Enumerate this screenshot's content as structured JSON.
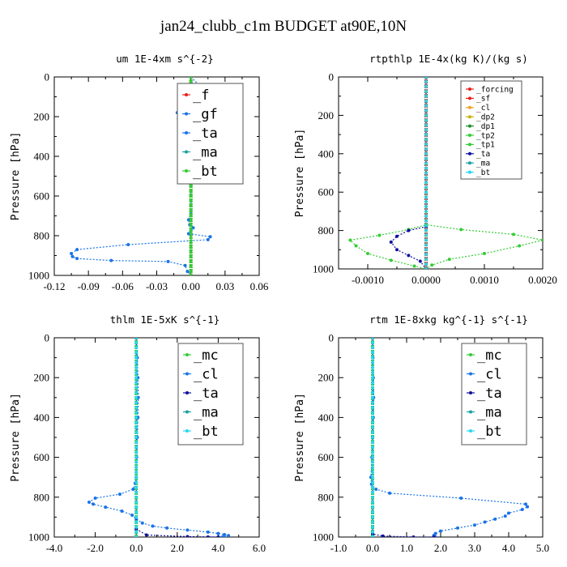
{
  "title": "jan24_clubb_c1m  BUDGET at90E,10N",
  "colors": {
    "frame": "#000000",
    "blue": "#1a73e8",
    "green": "#33cc33",
    "red": "#e8201a",
    "navy": "#1010a0",
    "cyan": "#22d8f0",
    "orange": "#f0a020",
    "gold": "#c8b400",
    "dkgreen": "#1f8f2a",
    "teal": "#18a0a0"
  },
  "chart_data": [
    {
      "type": "line",
      "title": "um  1E-4xm s^{-2}",
      "ylabel": "Pressure [hPa]",
      "xlim": [
        -0.12,
        0.06
      ],
      "ylim": [
        1000,
        0
      ],
      "xticks": [
        "-0.12",
        "-0.09",
        "-0.06",
        "-0.03",
        "0.00",
        "0.03",
        "0.06"
      ],
      "yticks": [
        "0",
        "200",
        "400",
        "600",
        "800",
        "1000"
      ],
      "legend": [
        "_f",
        "_gf",
        "_ta",
        "_ma",
        "_bt"
      ],
      "series": [
        {
          "name": "_f",
          "color": "red",
          "x": [
            0.0,
            0.0
          ],
          "y": [
            0,
            1000
          ]
        },
        {
          "name": "_gf",
          "color": "blue",
          "x": [
            0.0,
            0.018,
            0.017,
            0.029,
            0.03,
            0.029,
            0.021,
            0.01,
            -0.005,
            -0.012,
            -0.011,
            -0.01,
            -0.004,
            -0.001,
            0.0,
            -0.001,
            -0.003,
            -0.001,
            0.0,
            -0.001,
            0.0,
            0.0,
            0.0,
            0.0,
            -0.002,
            -0.001,
            0.002,
            0.0,
            -0.002,
            0.017,
            0.015,
            -0.055,
            -0.1,
            -0.105,
            -0.104,
            -0.1,
            -0.07,
            -0.02,
            -0.005,
            -0.003,
            0.0
          ],
          "y": [
            0,
            105,
            120,
            125,
            135,
            150,
            165,
            170,
            175,
            180,
            210,
            230,
            250,
            270,
            300,
            320,
            360,
            400,
            450,
            500,
            550,
            600,
            650,
            690,
            720,
            745,
            760,
            775,
            790,
            805,
            820,
            845,
            870,
            890,
            905,
            915,
            925,
            930,
            950,
            980,
            1000
          ]
        },
        {
          "name": "_ta",
          "color": "blue",
          "x": [
            0.0,
            0.0
          ],
          "y": [
            0,
            1000
          ]
        },
        {
          "name": "_ma",
          "color": "teal",
          "x": [
            0.0,
            0.0
          ],
          "y": [
            0,
            1000
          ]
        },
        {
          "name": "_bt",
          "color": "green",
          "x": [
            0.0,
            0.0
          ],
          "y": [
            0,
            1000
          ]
        }
      ]
    },
    {
      "type": "line",
      "title": "rtpthlp  1E-4x(kg K)/(kg s)",
      "ylabel": "Pressure [hPa]",
      "xlim": [
        -0.0015,
        0.002
      ],
      "ylim": [
        1000,
        0
      ],
      "xticks": [
        "-0.0010",
        "0.0000",
        "0.0010",
        "0.0020"
      ],
      "yticks": [
        "0",
        "200",
        "400",
        "600",
        "800",
        "1000"
      ],
      "legend": [
        "_forcing",
        "_sf",
        "_cl",
        "_dp2",
        "_dp1",
        "_tp2",
        "_tp1",
        "_ta",
        "_ma",
        "_bt"
      ],
      "series": [
        {
          "name": "_forcing",
          "color": "red",
          "x": [
            0.0,
            0.0
          ],
          "y": [
            0,
            1000
          ]
        },
        {
          "name": "_sf",
          "color": "red",
          "x": [
            0.0,
            0.0
          ],
          "y": [
            0,
            1000
          ]
        },
        {
          "name": "_cl",
          "color": "orange",
          "x": [
            0.0,
            0.0
          ],
          "y": [
            0,
            1000
          ]
        },
        {
          "name": "_dp2",
          "color": "gold",
          "x": [
            0.0,
            0.0
          ],
          "y": [
            0,
            1000
          ]
        },
        {
          "name": "_dp1",
          "color": "dkgreen",
          "x": [
            0.0,
            0.0
          ],
          "y": [
            0,
            1000
          ]
        },
        {
          "name": "_tp2",
          "color": "green",
          "x": [
            0.0,
            0.0,
            0.0006,
            0.0015,
            0.002,
            0.0016,
            0.001,
            0.0004,
            0.0001,
            0.0
          ],
          "y": [
            0,
            770,
            795,
            820,
            850,
            880,
            920,
            950,
            980,
            1000
          ]
        },
        {
          "name": "_tp1",
          "color": "green",
          "x": [
            0.0,
            0.0,
            -0.0003,
            -0.0008,
            -0.0013,
            -0.0012,
            -0.001,
            -0.0006,
            -0.0002,
            0.0
          ],
          "y": [
            0,
            770,
            795,
            825,
            850,
            880,
            920,
            955,
            985,
            1000
          ]
        },
        {
          "name": "_ta",
          "color": "navy",
          "x": [
            0.0,
            0.0,
            -0.0003,
            -0.0005,
            -0.0006,
            -0.0005,
            -0.0003,
            -0.0001,
            0.0
          ],
          "y": [
            0,
            780,
            800,
            830,
            860,
            900,
            930,
            960,
            1000
          ]
        },
        {
          "name": "_ma",
          "color": "teal",
          "x": [
            0.0,
            0.0
          ],
          "y": [
            0,
            1000
          ]
        },
        {
          "name": "_bt",
          "color": "cyan",
          "x": [
            0.0,
            0.0
          ],
          "y": [
            0,
            1000
          ]
        }
      ]
    },
    {
      "type": "line",
      "title": "thlm  1E-5xK s^{-1}",
      "ylabel": "Pressure [hPa]",
      "xlim": [
        -4.0,
        6.0
      ],
      "ylim": [
        1000,
        0
      ],
      "xticks": [
        "-4.0",
        "-2.0",
        "0.0",
        "2.0",
        "4.0",
        "6.0"
      ],
      "yticks": [
        "0",
        "200",
        "400",
        "600",
        "800",
        "1000"
      ],
      "legend": [
        "_mc",
        "_cl",
        "_ta",
        "_ma",
        "_bt"
      ],
      "series": [
        {
          "name": "_mc",
          "color": "green",
          "x": [
            0.0,
            0.0
          ],
          "y": [
            0,
            1000
          ]
        },
        {
          "name": "_cl",
          "color": "blue",
          "x": [
            0.0,
            0.05,
            0.08,
            0.1,
            0.08,
            0.05,
            0.02,
            0.0,
            -0.05,
            -0.15,
            -0.8,
            -2.0,
            -2.3,
            -2.1,
            -1.5,
            -0.7,
            -0.2,
            0.0,
            0.3,
            0.8,
            1.5,
            2.5,
            3.5,
            4.0,
            4.3,
            4.5,
            4.2
          ],
          "y": [
            0,
            100,
            200,
            300,
            400,
            500,
            600,
            700,
            730,
            760,
            785,
            805,
            825,
            835,
            850,
            870,
            890,
            910,
            930,
            945,
            955,
            965,
            975,
            982,
            988,
            993,
            1000
          ]
        },
        {
          "name": "_ta",
          "color": "navy",
          "x": [
            0.0,
            0.0,
            0.5,
            2.5,
            4.0,
            3.5
          ],
          "y": [
            0,
            960,
            990,
            998,
            1000,
            1000
          ]
        },
        {
          "name": "_ma",
          "color": "teal",
          "x": [
            0.0,
            0.0
          ],
          "y": [
            0,
            1000
          ]
        },
        {
          "name": "_bt",
          "color": "cyan",
          "x": [
            0.0,
            0.0
          ],
          "y": [
            0,
            1000
          ]
        }
      ]
    },
    {
      "type": "line",
      "title": "rtm  1E-8xkg kg^{-1} s^{-1}",
      "ylabel": "Pressure [hPa]",
      "xlim": [
        -1.0,
        5.0
      ],
      "ylim": [
        1000,
        0
      ],
      "xticks": [
        "-1.0",
        "0.0",
        "1.0",
        "2.0",
        "3.0",
        "4.0",
        "5.0"
      ],
      "yticks": [
        "0",
        "200",
        "400",
        "600",
        "800",
        "1000"
      ],
      "legend": [
        "_mc",
        "_cl",
        "_ta",
        "_ma",
        "_bt"
      ],
      "series": [
        {
          "name": "_mc",
          "color": "green",
          "x": [
            0.0,
            0.0
          ],
          "y": [
            0,
            1000
          ]
        },
        {
          "name": "_cl",
          "color": "blue",
          "x": [
            0.0,
            0.01,
            0.02,
            0.03,
            0.02,
            0.0,
            -0.02,
            -0.05,
            -0.03,
            0.1,
            0.5,
            2.6,
            4.5,
            4.55,
            4.4,
            4.0,
            3.9,
            3.6,
            3.3,
            3.0,
            2.5,
            2.0,
            1.85,
            1.8,
            1.85
          ],
          "y": [
            0,
            100,
            200,
            300,
            400,
            500,
            600,
            700,
            735,
            760,
            780,
            805,
            835,
            848,
            862,
            880,
            895,
            910,
            925,
            940,
            955,
            970,
            982,
            992,
            1000
          ]
        },
        {
          "name": "_ta",
          "color": "navy",
          "x": [
            0.0,
            0.0,
            0.3,
            1.2,
            1.8
          ],
          "y": [
            0,
            985,
            995,
            1000,
            1000
          ]
        },
        {
          "name": "_ma",
          "color": "teal",
          "x": [
            0.0,
            0.0
          ],
          "y": [
            0,
            1000
          ]
        },
        {
          "name": "_bt",
          "color": "cyan",
          "x": [
            0.0,
            0.0
          ],
          "y": [
            0,
            1000
          ]
        }
      ]
    }
  ]
}
